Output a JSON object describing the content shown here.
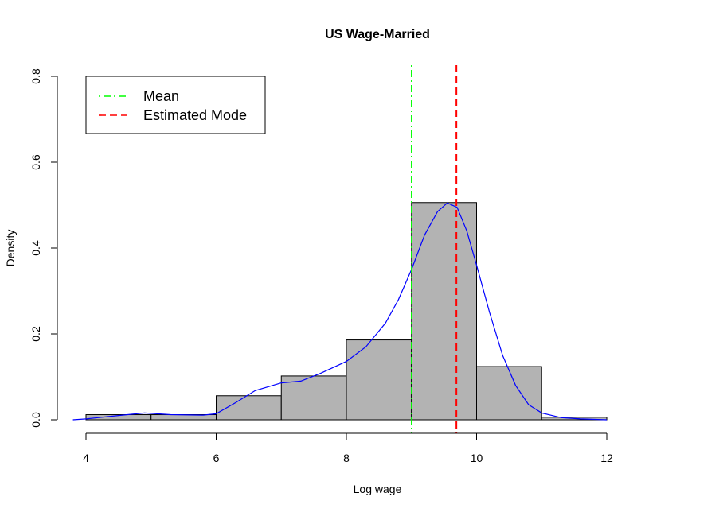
{
  "chart_data": {
    "type": "bar",
    "title": "US Wage-Married",
    "xlabel": "Log wage",
    "ylabel": "Density",
    "xlim": [
      3.8,
      12.2
    ],
    "ylim": [
      0,
      0.8
    ],
    "x_ticks": [
      4,
      6,
      8,
      10,
      12
    ],
    "y_ticks": [
      0.0,
      0.2,
      0.4,
      0.6,
      0.8
    ],
    "y_tick_labels": [
      "0.0",
      "0.2",
      "0.4",
      "0.6",
      "0.8"
    ],
    "bins": [
      {
        "x0": 4,
        "x1": 5,
        "density": 0.012
      },
      {
        "x0": 5,
        "x1": 6,
        "density": 0.012
      },
      {
        "x0": 6,
        "x1": 7,
        "density": 0.056
      },
      {
        "x0": 7,
        "x1": 8,
        "density": 0.102
      },
      {
        "x0": 8,
        "x1": 9,
        "density": 0.186
      },
      {
        "x0": 9,
        "x1": 10,
        "density": 0.506
      },
      {
        "x0": 10,
        "x1": 11,
        "density": 0.124
      },
      {
        "x0": 11,
        "x1": 12,
        "density": 0.006
      }
    ],
    "bar_color": "#b3b3b3",
    "density_curve": {
      "color": "#0000ff",
      "x": [
        3.8,
        4.0,
        4.5,
        4.9,
        5.3,
        5.8,
        6.0,
        6.3,
        6.6,
        7.0,
        7.3,
        7.6,
        8.0,
        8.3,
        8.6,
        8.8,
        9.0,
        9.2,
        9.4,
        9.55,
        9.7,
        9.85,
        10.0,
        10.2,
        10.4,
        10.6,
        10.8,
        11.0,
        11.3,
        11.6,
        12.0
      ],
      "y": [
        0.0,
        0.002,
        0.01,
        0.016,
        0.012,
        0.011,
        0.014,
        0.04,
        0.068,
        0.086,
        0.09,
        0.108,
        0.136,
        0.17,
        0.225,
        0.28,
        0.35,
        0.43,
        0.485,
        0.505,
        0.495,
        0.44,
        0.36,
        0.25,
        0.15,
        0.08,
        0.035,
        0.016,
        0.005,
        0.002,
        0.0
      ]
    },
    "vlines": [
      {
        "name": "Mean",
        "x": 9.0,
        "color": "#00ff00",
        "style": "dotdash"
      },
      {
        "name": "Estimated Mode",
        "x": 9.69,
        "color": "#ff0000",
        "style": "dashed"
      }
    ],
    "legend": {
      "placement": "top-left",
      "entries": [
        {
          "label": "Mean",
          "color": "#00ff00",
          "style": "dotdash"
        },
        {
          "label": "Estimated Mode",
          "color": "#ff0000",
          "style": "dashed"
        }
      ]
    }
  }
}
